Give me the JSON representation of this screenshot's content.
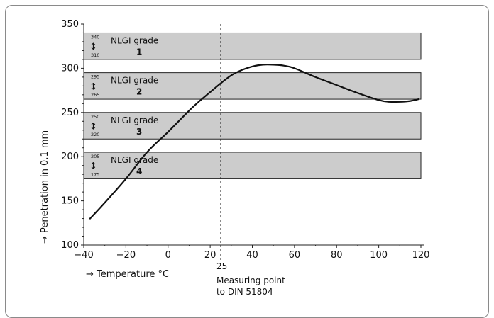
{
  "chart_data": {
    "type": "line",
    "title": "",
    "xlabel": "→ Temperature °C",
    "ylabel": "→ Penetration in 0.1 mm",
    "xlim": [
      -40,
      120
    ],
    "ylim": [
      100,
      350
    ],
    "x_ticks": [
      "−40",
      "−20",
      "0",
      "20",
      "40",
      "60",
      "80",
      "100",
      "120"
    ],
    "y_ticks": [
      "100",
      "150",
      "200",
      "250",
      "300",
      "350"
    ],
    "grid": false,
    "band_color": "#cccccc",
    "line_color": "#111111",
    "nlgi_bands": [
      {
        "label": "NLGI grade",
        "grade": "1",
        "upper": "340",
        "lower": "310",
        "arrow": "↕",
        "ymin": 310,
        "ymax": 340
      },
      {
        "label": "NLGI grade",
        "grade": "2",
        "upper": "295",
        "lower": "265",
        "arrow": "↕",
        "ymin": 265,
        "ymax": 295
      },
      {
        "label": "NLGI grade",
        "grade": "3",
        "upper": "250",
        "lower": "220",
        "arrow": "↕",
        "ymin": 220,
        "ymax": 250
      },
      {
        "label": "NLGI grade",
        "grade": "4",
        "upper": "205",
        "lower": "175",
        "arrow": "↕",
        "ymin": 175,
        "ymax": 205
      }
    ],
    "series": [
      {
        "x": [
          -37,
          -30,
          -20,
          -10,
          0,
          10,
          15,
          20,
          25,
          30,
          35,
          40,
          45,
          50,
          55,
          60,
          70,
          80,
          90,
          100,
          105,
          110,
          115,
          119
        ],
        "y": [
          130,
          148,
          175,
          205,
          228,
          252,
          263,
          273,
          283,
          292,
          298,
          302,
          304,
          304,
          303,
          300,
          290,
          281,
          272,
          264,
          262,
          262,
          263,
          265
        ]
      }
    ],
    "reference_line": {
      "x": 25,
      "label": "25",
      "note_line1": "Measuring point",
      "note_line2": "to DIN 51804"
    }
  }
}
